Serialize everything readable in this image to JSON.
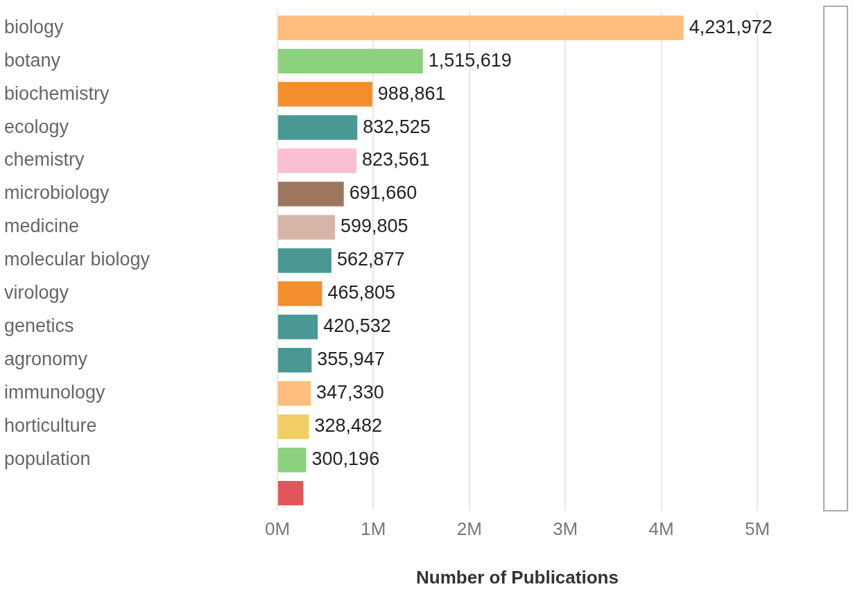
{
  "chart_data": {
    "type": "bar",
    "orientation": "horizontal",
    "xlabel": "Number of Publications",
    "categories": [
      "biology",
      "botany",
      "biochemistry",
      "ecology",
      "chemistry",
      "microbiology",
      "medicine",
      "molecular biology",
      "virology",
      "genetics",
      "agronomy",
      "immunology",
      "horticulture",
      "population",
      null
    ],
    "values": [
      4231972,
      1515619,
      988861,
      832525,
      823561,
      691660,
      599805,
      562877,
      465805,
      420532,
      355947,
      347330,
      328482,
      300196,
      270000
    ],
    "colors": [
      "#ffbe7d",
      "#8cd17d",
      "#f28e2b",
      "#499894",
      "#fabfd2",
      "#9d7660",
      "#d7b5a6",
      "#499894",
      "#f28e2b",
      "#499894",
      "#499894",
      "#ffbe7d",
      "#f1ce63",
      "#8cd17d",
      "#e15759"
    ],
    "value_labels": [
      "4,231,972",
      "1,515,619",
      "988,861",
      "832,525",
      "823,561",
      "691,660",
      "599,805",
      "562,877",
      "465,805",
      "420,532",
      "355,947",
      "347,330",
      "328,482",
      "300,196",
      null
    ],
    "xlim": [
      0,
      5000000
    ],
    "xticks": [
      {
        "value": 0,
        "label": "0M"
      },
      {
        "value": 1000000,
        "label": "1M"
      },
      {
        "value": 2000000,
        "label": "2M"
      },
      {
        "value": 3000000,
        "label": "3M"
      },
      {
        "value": 4000000,
        "label": "4M"
      },
      {
        "value": 5000000,
        "label": "5M"
      }
    ],
    "grid": "x",
    "legend": false
  }
}
